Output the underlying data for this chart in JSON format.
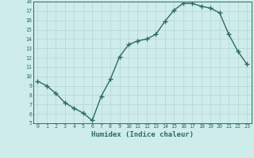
{
  "x": [
    0,
    1,
    2,
    3,
    4,
    5,
    6,
    7,
    8,
    9,
    10,
    11,
    12,
    13,
    14,
    15,
    16,
    17,
    18,
    19,
    20,
    21,
    22,
    23
  ],
  "y": [
    9.5,
    9.0,
    8.2,
    7.2,
    6.6,
    6.1,
    5.3,
    7.9,
    9.7,
    12.1,
    13.4,
    13.8,
    14.0,
    14.5,
    15.9,
    17.1,
    17.8,
    17.8,
    17.5,
    17.3,
    16.8,
    14.5,
    12.7,
    11.3
  ],
  "xlabel": "Humidex (Indice chaleur)",
  "ylim": [
    5,
    18
  ],
  "xlim": [
    -0.5,
    23.5
  ],
  "yticks": [
    5,
    6,
    7,
    8,
    9,
    10,
    11,
    12,
    13,
    14,
    15,
    16,
    17,
    18
  ],
  "xticks": [
    0,
    1,
    2,
    3,
    4,
    5,
    6,
    7,
    8,
    9,
    10,
    11,
    12,
    13,
    14,
    15,
    16,
    17,
    18,
    19,
    20,
    21,
    22,
    23
  ],
  "line_color": "#2e6b5e",
  "marker_color": "#2e6b5e",
  "bg_color": "#ceecea",
  "grid_color": "#b8dad6",
  "axis_label_color": "#2e6b5e",
  "tick_color": "#2e6b5e"
}
